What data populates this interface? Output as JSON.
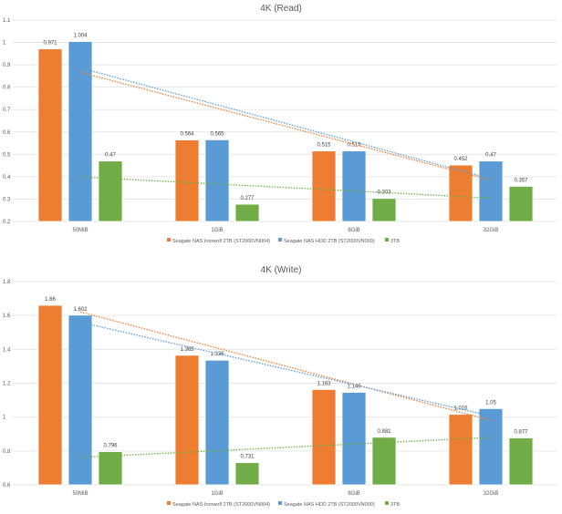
{
  "chart_data": [
    {
      "type": "bar",
      "title": "4K (Read)",
      "categories": [
        "50MiB",
        "1GiB",
        "8GiB",
        "32GiB"
      ],
      "ylim": [
        0.2,
        1.1
      ],
      "yticks": [
        "0.2",
        "0.3",
        "0.4",
        "0.5",
        "0.6",
        "0.7",
        "0.8",
        "0.9",
        "1",
        "1.1"
      ],
      "grid": true,
      "legend": "bottom",
      "trendlines": "linear, dotted",
      "series": [
        {
          "name": "Seagate NAS Ironwolf 2TB (ST2000VN004)",
          "color": "#ED7D31",
          "values": [
            0.971,
            0.564,
            0.515,
            0.452
          ]
        },
        {
          "name": "Seagate NAS HDD 2TB (ST2000VN000)",
          "color": "#5B9BD5",
          "values": [
            1.004,
            0.565,
            0.515,
            0.47
          ]
        },
        {
          "name": "3TB",
          "color": "#70AD47",
          "values": [
            0.47,
            0.277,
            0.303,
            0.357
          ]
        }
      ]
    },
    {
      "type": "bar",
      "title": "4K (Write)",
      "categories": [
        "50MiB",
        "1GiB",
        "8GiB",
        "32GiB"
      ],
      "ylim": [
        0.6,
        1.8
      ],
      "yticks": [
        "0.6",
        "0.8",
        "1",
        "1.2",
        "1.4",
        "1.6",
        "1.8"
      ],
      "grid": true,
      "legend": "bottom",
      "trendlines": "linear, dotted",
      "series": [
        {
          "name": "Seagate NAS Ironwolf 2TB (ST2000VN004)",
          "color": "#ED7D31",
          "values": [
            1.66,
            1.365,
            1.163,
            1.016
          ]
        },
        {
          "name": "Seagate NAS HDD 2TB (ST2000VN000)",
          "color": "#5B9BD5",
          "values": [
            1.602,
            1.336,
            1.146,
            1.05
          ]
        },
        {
          "name": "3TB",
          "color": "#70AD47",
          "values": [
            0.796,
            0.731,
            0.881,
            0.877
          ]
        }
      ]
    }
  ]
}
